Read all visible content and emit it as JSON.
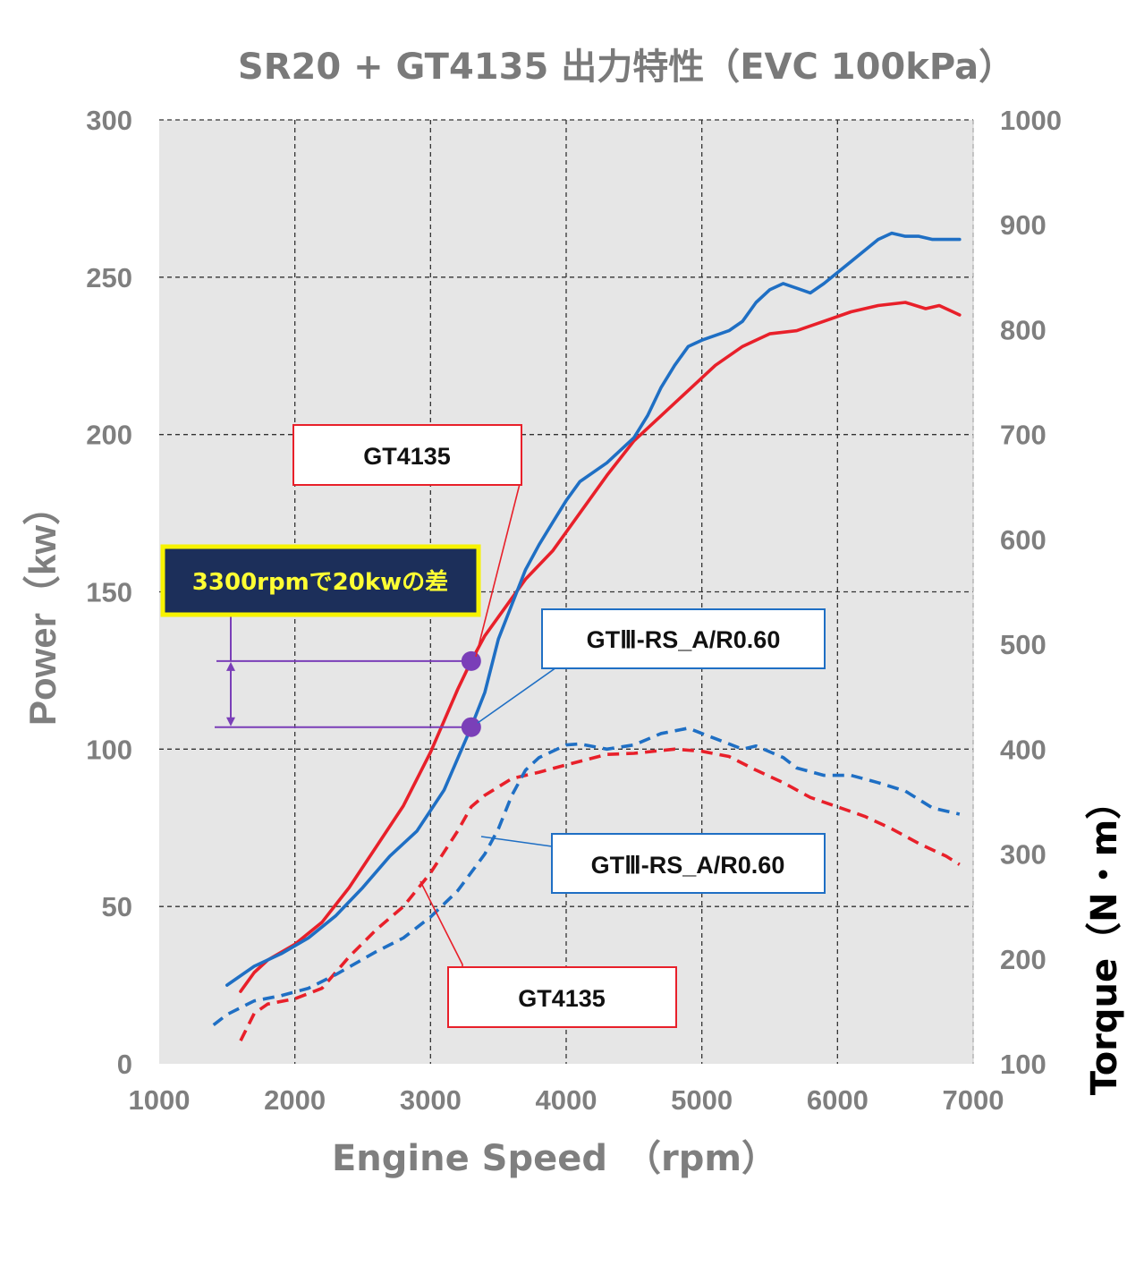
{
  "colors": {
    "gt4135": "#e8202a",
    "gt3rs": "#1f6fc4",
    "marker": "#7a3fb8",
    "plot_bg": "#e6e6e6",
    "note_bg": "#1c2f5a",
    "note_border": "#f7f300",
    "note_text": "#ffff33"
  },
  "chart_data": {
    "type": "line",
    "title": "SR20 + GT4135  出力特性（EVC 100kPa）",
    "xlabel": "Engine Speed　（rpm）",
    "ylabel": "Power（kw）",
    "y2label": "Torque（N・m）",
    "xlim": [
      1000,
      7000
    ],
    "ylim": [
      0,
      300
    ],
    "y2lim": [
      100,
      1000
    ],
    "x_ticks": [
      "1000",
      "2000",
      "3000",
      "4000",
      "5000",
      "6000",
      "7000"
    ],
    "y_ticks": [
      "0",
      "50",
      "100",
      "150",
      "200",
      "250",
      "300"
    ],
    "y2_ticks": [
      "100",
      "200",
      "300",
      "400",
      "500",
      "600",
      "700",
      "800",
      "900",
      "1000"
    ],
    "grid": true,
    "series": [
      {
        "name": "GT4135",
        "quantity": "power",
        "axis": "left",
        "style": "solid",
        "color_key": "gt4135",
        "points": [
          [
            1600,
            23
          ],
          [
            1700,
            29
          ],
          [
            1800,
            33
          ],
          [
            2000,
            38
          ],
          [
            2200,
            45
          ],
          [
            2400,
            56
          ],
          [
            2600,
            69
          ],
          [
            2800,
            82
          ],
          [
            3000,
            99
          ],
          [
            3100,
            109
          ],
          [
            3200,
            119
          ],
          [
            3300,
            128
          ],
          [
            3400,
            136
          ],
          [
            3500,
            142
          ],
          [
            3700,
            154
          ],
          [
            3900,
            163
          ],
          [
            4100,
            175
          ],
          [
            4300,
            187
          ],
          [
            4500,
            198
          ],
          [
            4700,
            206
          ],
          [
            4900,
            214
          ],
          [
            5100,
            222
          ],
          [
            5300,
            228
          ],
          [
            5500,
            232
          ],
          [
            5700,
            233
          ],
          [
            5900,
            236
          ],
          [
            6100,
            239
          ],
          [
            6300,
            241
          ],
          [
            6500,
            242
          ],
          [
            6650,
            240
          ],
          [
            6750,
            241
          ],
          [
            6850,
            239
          ],
          [
            6900,
            238
          ]
        ]
      },
      {
        "name": "GTⅢ-RS_A/R0.60",
        "quantity": "power",
        "axis": "left",
        "style": "solid",
        "color_key": "gt3rs",
        "points": [
          [
            1500,
            25
          ],
          [
            1700,
            31
          ],
          [
            1900,
            35
          ],
          [
            2100,
            40
          ],
          [
            2300,
            47
          ],
          [
            2500,
            56
          ],
          [
            2700,
            66
          ],
          [
            2900,
            74
          ],
          [
            3100,
            87
          ],
          [
            3300,
            107
          ],
          [
            3400,
            118
          ],
          [
            3500,
            135
          ],
          [
            3600,
            146
          ],
          [
            3700,
            157
          ],
          [
            3800,
            165
          ],
          [
            3900,
            172
          ],
          [
            4000,
            179
          ],
          [
            4100,
            185
          ],
          [
            4300,
            191
          ],
          [
            4500,
            199
          ],
          [
            4600,
            206
          ],
          [
            4700,
            215
          ],
          [
            4800,
            222
          ],
          [
            4900,
            228
          ],
          [
            5000,
            230
          ],
          [
            5200,
            233
          ],
          [
            5300,
            236
          ],
          [
            5400,
            242
          ],
          [
            5500,
            246
          ],
          [
            5600,
            248
          ],
          [
            5800,
            245
          ],
          [
            5900,
            248
          ],
          [
            6100,
            255
          ],
          [
            6300,
            262
          ],
          [
            6400,
            264
          ],
          [
            6500,
            263
          ],
          [
            6600,
            263
          ],
          [
            6700,
            262
          ],
          [
            6800,
            262
          ],
          [
            6900,
            262
          ]
        ]
      },
      {
        "name": "GT4135",
        "quantity": "torque",
        "axis": "right",
        "style": "dashed",
        "color_key": "gt4135",
        "points": [
          [
            1600,
            122
          ],
          [
            1700,
            148
          ],
          [
            1800,
            157
          ],
          [
            2000,
            162
          ],
          [
            2200,
            172
          ],
          [
            2400,
            202
          ],
          [
            2600,
            228
          ],
          [
            2800,
            250
          ],
          [
            3000,
            282
          ],
          [
            3200,
            322
          ],
          [
            3300,
            345
          ],
          [
            3400,
            356
          ],
          [
            3600,
            372
          ],
          [
            3800,
            378
          ],
          [
            4000,
            385
          ],
          [
            4300,
            395
          ],
          [
            4500,
            396
          ],
          [
            4800,
            400
          ],
          [
            5000,
            398
          ],
          [
            5200,
            393
          ],
          [
            5400,
            380
          ],
          [
            5600,
            368
          ],
          [
            5800,
            354
          ],
          [
            6000,
            345
          ],
          [
            6200,
            336
          ],
          [
            6400,
            324
          ],
          [
            6600,
            310
          ],
          [
            6800,
            298
          ],
          [
            6900,
            290
          ]
        ]
      },
      {
        "name": "GTⅢ-RS_A/R0.60",
        "quantity": "torque",
        "axis": "right",
        "style": "dashed",
        "color_key": "gt3rs",
        "points": [
          [
            1400,
            137
          ],
          [
            1500,
            147
          ],
          [
            1700,
            160
          ],
          [
            1900,
            165
          ],
          [
            2100,
            172
          ],
          [
            2300,
            185
          ],
          [
            2600,
            207
          ],
          [
            2800,
            220
          ],
          [
            3000,
            240
          ],
          [
            3200,
            265
          ],
          [
            3400,
            300
          ],
          [
            3500,
            324
          ],
          [
            3600,
            356
          ],
          [
            3700,
            380
          ],
          [
            3800,
            392
          ],
          [
            4000,
            404
          ],
          [
            4100,
            405
          ],
          [
            4300,
            400
          ],
          [
            4500,
            404
          ],
          [
            4700,
            415
          ],
          [
            4900,
            420
          ],
          [
            5100,
            410
          ],
          [
            5300,
            400
          ],
          [
            5400,
            403
          ],
          [
            5600,
            392
          ],
          [
            5700,
            382
          ],
          [
            5900,
            375
          ],
          [
            6100,
            375
          ],
          [
            6300,
            368
          ],
          [
            6500,
            360
          ],
          [
            6700,
            344
          ],
          [
            6900,
            338
          ]
        ]
      }
    ],
    "annotations": [
      {
        "text": "GT4135",
        "points_to": "GT4135 power at 3300 rpm"
      },
      {
        "text": "GTⅢ-RS_A/R0.60",
        "points_to": "GTⅢ-RS_A/R0.60 power at 3300 rpm"
      },
      {
        "text": "3300rpmで20kwの差",
        "marker_rpm": 3300,
        "marker_values_kw": [
          128,
          107
        ]
      },
      {
        "text": "GTⅢ-RS_A/R0.60",
        "points_to": "GTⅢ-RS_A/R0.60 torque"
      },
      {
        "text": "GT4135",
        "points_to": "GT4135 torque"
      }
    ]
  }
}
